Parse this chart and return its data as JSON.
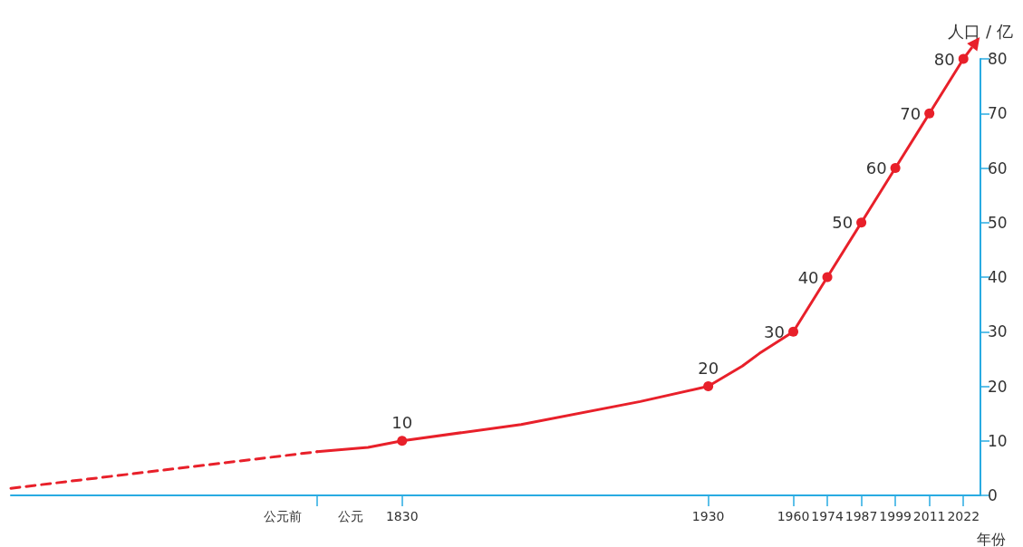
{
  "chart_data": {
    "type": "line",
    "xlabel": "年份",
    "ylabel": "人口 / 亿",
    "categories": [
      null,
      null,
      null,
      null,
      null,
      null,
      null,
      null,
      null,
      null,
      null,
      null,
      null,
      null,
      null,
      null,
      "公元前",
      null,
      null,
      null,
      "公元",
      null,
      null,
      "1830",
      null,
      null,
      null,
      null,
      null,
      null,
      null,
      null,
      null,
      null,
      null,
      null,
      null,
      null,
      null,
      null,
      null,
      "1930",
      null,
      null,
      null,
      null,
      "1960",
      null,
      "1974",
      null,
      "1987",
      null,
      "1999",
      null,
      "2011",
      null,
      "2022",
      null
    ],
    "series": [
      {
        "color": "#e8202a",
        "line_style": "dashed",
        "values": [
          1.3,
          null,
          null,
          null,
          null,
          null,
          null,
          null,
          null,
          null,
          null,
          null,
          null,
          null,
          null,
          null,
          null,
          null,
          8,
          null,
          null,
          null,
          null,
          null,
          null,
          null,
          null,
          null,
          null,
          null,
          null,
          null,
          null,
          null,
          null,
          null,
          null,
          null,
          null,
          null,
          null,
          null,
          null,
          null,
          null,
          null,
          null,
          null,
          null,
          null,
          null,
          null,
          null,
          null,
          null,
          null,
          null,
          null
        ]
      },
      {
        "color": "#e8202a",
        "line_style": "solid",
        "marker": "circle",
        "values": [
          null,
          null,
          null,
          null,
          null,
          null,
          null,
          null,
          null,
          null,
          null,
          null,
          null,
          null,
          null,
          null,
          null,
          null,
          8,
          null,
          null,
          8.8,
          null,
          10,
          null,
          null,
          null,
          null,
          null,
          null,
          13,
          null,
          null,
          null,
          null,
          null,
          null,
          17.2,
          null,
          null,
          null,
          20,
          null,
          23.7,
          26,
          null,
          30,
          null,
          40,
          null,
          50,
          null,
          60,
          null,
          70,
          null,
          80,
          null
        ],
        "value_labels": [
          null,
          null,
          null,
          null,
          null,
          null,
          null,
          null,
          null,
          null,
          null,
          null,
          null,
          null,
          null,
          null,
          null,
          null,
          null,
          null,
          null,
          null,
          null,
          "10",
          null,
          null,
          null,
          null,
          null,
          null,
          null,
          null,
          null,
          null,
          null,
          null,
          null,
          null,
          null,
          null,
          null,
          "20",
          null,
          null,
          null,
          null,
          "30",
          null,
          "40",
          null,
          "50",
          null,
          "60",
          null,
          "70",
          null,
          "80",
          null
        ]
      }
    ],
    "ylim": [
      0,
      80
    ],
    "yticks": [
      0,
      10,
      20,
      30,
      40,
      50,
      60,
      70,
      80
    ]
  }
}
